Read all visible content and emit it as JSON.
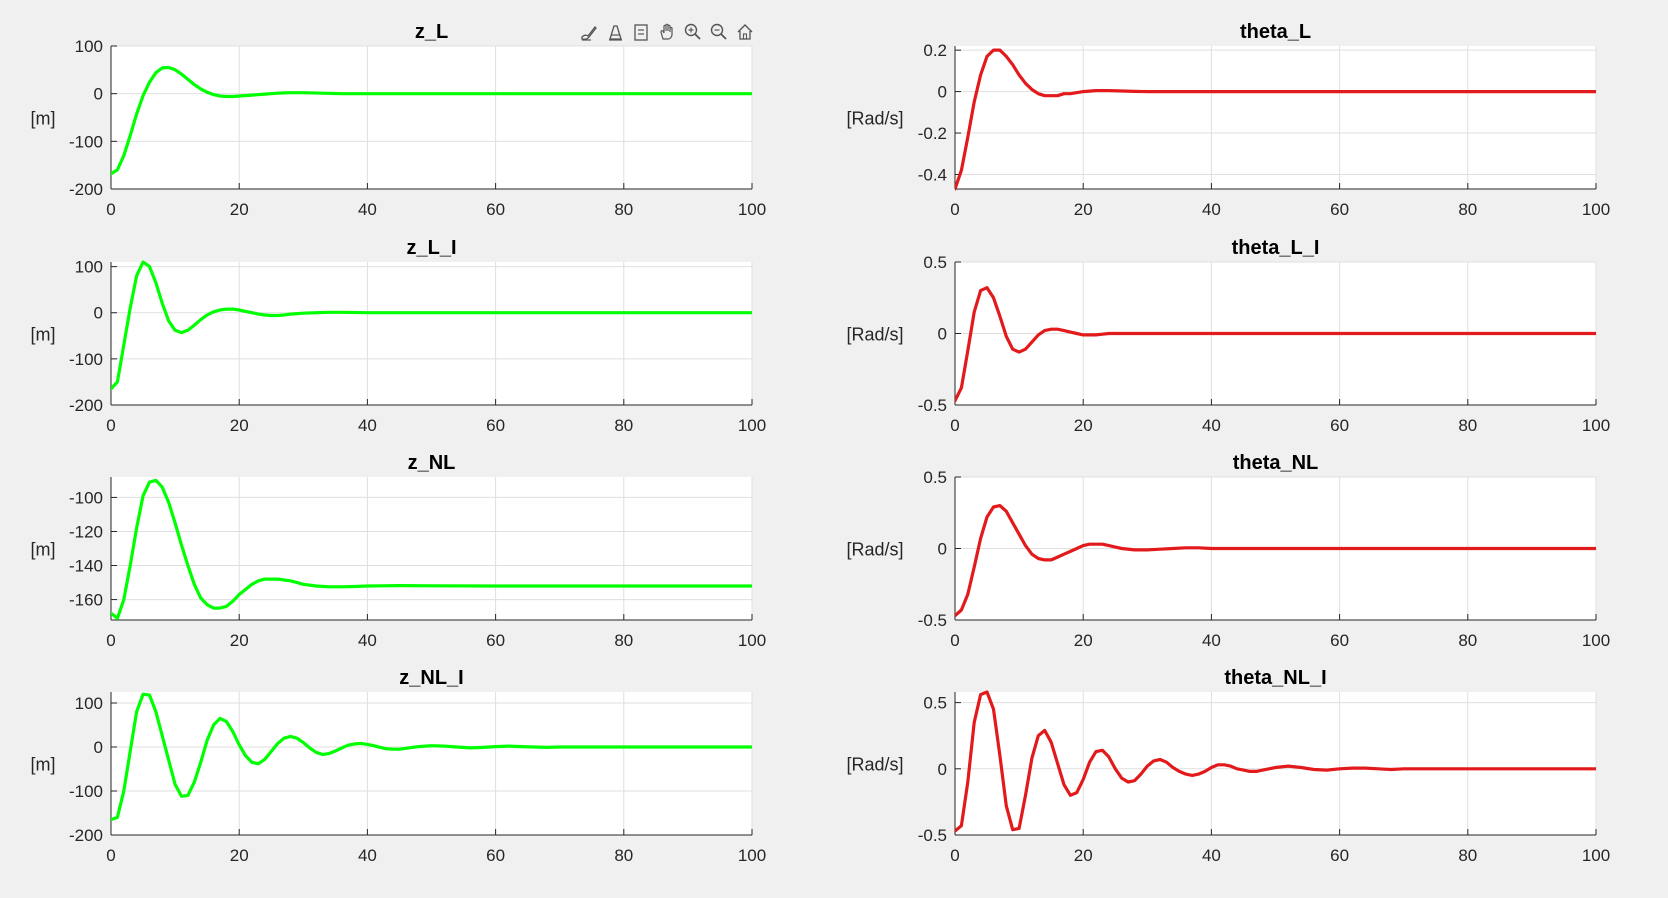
{
  "toolbar": {
    "buttons": [
      {
        "name": "brush-icon"
      },
      {
        "name": "data-tips-icon"
      },
      {
        "name": "restore-icon"
      },
      {
        "name": "pan-icon"
      },
      {
        "name": "zoom-in-icon"
      },
      {
        "name": "zoom-out-icon"
      },
      {
        "name": "home-icon"
      }
    ]
  },
  "chart_data": [
    {
      "type": "line",
      "title": "z_L",
      "ylabel": "[m]",
      "xlabel": "",
      "xlim": [
        0,
        100
      ],
      "ylim": [
        -200,
        100
      ],
      "xticks": [
        0,
        20,
        40,
        60,
        80,
        100
      ],
      "ytick_labels": [
        "100",
        "0",
        "-100",
        "-200"
      ],
      "yticks": [
        100,
        0,
        -100,
        -200
      ],
      "grid": true,
      "color": "#00ff00",
      "series": [
        {
          "x": [
            0,
            1,
            2,
            3,
            4,
            5,
            6,
            7,
            8,
            9,
            10,
            11,
            12,
            13,
            14,
            15,
            16,
            17,
            18,
            19,
            20,
            22,
            24,
            26,
            28,
            30,
            33,
            36,
            40,
            45,
            50,
            60,
            70,
            80,
            90,
            100
          ],
          "values": [
            -168,
            -160,
            -130,
            -88,
            -43,
            -4,
            24,
            44,
            54,
            55,
            50,
            41,
            30,
            19,
            10,
            3,
            -2,
            -5,
            -6,
            -6,
            -5,
            -3,
            -1,
            1,
            2,
            2,
            1,
            0,
            0,
            0,
            0,
            0,
            0,
            0,
            0,
            0
          ]
        }
      ]
    },
    {
      "type": "line",
      "title": "theta_L",
      "ylabel": "[Rad/s]",
      "xlabel": "",
      "xlim": [
        0,
        100
      ],
      "ylim": [
        -0.47,
        0.22
      ],
      "xticks": [
        0,
        20,
        40,
        60,
        80,
        100
      ],
      "ytick_labels": [
        "0.2",
        "0",
        "-0.2",
        "-0.4"
      ],
      "yticks": [
        0.2,
        0,
        -0.2,
        -0.4
      ],
      "grid": true,
      "color": "#e31a1c",
      "series": [
        {
          "x": [
            0,
            1,
            2,
            3,
            4,
            5,
            6,
            7,
            8,
            9,
            10,
            11,
            12,
            13,
            14,
            15,
            16,
            17,
            18,
            20,
            22,
            24,
            26,
            28,
            30,
            35,
            40,
            50,
            60,
            70,
            80,
            90,
            100
          ],
          "values": [
            -0.47,
            -0.38,
            -0.22,
            -0.05,
            0.08,
            0.17,
            0.2,
            0.2,
            0.17,
            0.13,
            0.08,
            0.04,
            0.01,
            -0.01,
            -0.02,
            -0.02,
            -0.02,
            -0.01,
            -0.01,
            0,
            0.005,
            0.005,
            0.003,
            0.001,
            0,
            0,
            0,
            0,
            0,
            0,
            0,
            0,
            0
          ]
        }
      ]
    },
    {
      "type": "line",
      "title": "z_L_I",
      "ylabel": "[m]",
      "xlabel": "",
      "xlim": [
        0,
        100
      ],
      "ylim": [
        -200,
        110
      ],
      "xticks": [
        0,
        20,
        40,
        60,
        80,
        100
      ],
      "ytick_labels": [
        "100",
        "0",
        "-100",
        "-200"
      ],
      "yticks": [
        100,
        0,
        -100,
        -200
      ],
      "grid": true,
      "color": "#00ff00",
      "series": [
        {
          "x": [
            0,
            1,
            2,
            3,
            4,
            5,
            6,
            7,
            8,
            9,
            10,
            11,
            12,
            13,
            14,
            15,
            16,
            17,
            18,
            19,
            20,
            21,
            22,
            23,
            24,
            25,
            26,
            27,
            28,
            30,
            32,
            34,
            36,
            40,
            45,
            50,
            60,
            70,
            80,
            90,
            100
          ],
          "values": [
            -165,
            -150,
            -70,
            10,
            80,
            110,
            100,
            65,
            20,
            -18,
            -38,
            -43,
            -38,
            -27,
            -15,
            -5,
            2,
            6,
            8,
            8,
            6,
            3,
            0,
            -3,
            -5,
            -6,
            -6,
            -5,
            -3,
            -1,
            0,
            1,
            1,
            0,
            0,
            0,
            0,
            0,
            0,
            0,
            0
          ]
        }
      ]
    },
    {
      "type": "line",
      "title": "theta_L_I",
      "ylabel": "[Rad/s]",
      "xlabel": "",
      "xlim": [
        0,
        100
      ],
      "ylim": [
        -0.5,
        0.5
      ],
      "xticks": [
        0,
        20,
        40,
        60,
        80,
        100
      ],
      "ytick_labels": [
        "0.5",
        "0",
        "-0.5"
      ],
      "yticks": [
        0.5,
        0,
        -0.5
      ],
      "grid": true,
      "color": "#e31a1c",
      "series": [
        {
          "x": [
            0,
            1,
            2,
            3,
            4,
            5,
            6,
            7,
            8,
            9,
            10,
            11,
            12,
            13,
            14,
            15,
            16,
            17,
            18,
            19,
            20,
            21,
            22,
            23,
            24,
            26,
            28,
            30,
            35,
            40,
            50,
            60,
            70,
            80,
            90,
            100
          ],
          "values": [
            -0.47,
            -0.38,
            -0.12,
            0.15,
            0.3,
            0.32,
            0.25,
            0.12,
            -0.02,
            -0.11,
            -0.13,
            -0.11,
            -0.06,
            -0.01,
            0.02,
            0.03,
            0.03,
            0.02,
            0.01,
            0,
            -0.01,
            -0.01,
            -0.01,
            -0.005,
            0,
            0,
            0,
            0,
            0,
            0,
            0,
            0,
            0,
            0,
            0,
            0
          ]
        }
      ]
    },
    {
      "type": "line",
      "title": "z_NL",
      "ylabel": "[m]",
      "xlabel": "",
      "xlim": [
        0,
        100
      ],
      "ylim": [
        -172,
        -88
      ],
      "xticks": [
        0,
        20,
        40,
        60,
        80,
        100
      ],
      "ytick_labels": [
        "-100",
        "-120",
        "-140",
        "-160"
      ],
      "yticks": [
        -100,
        -120,
        -140,
        -160
      ],
      "grid": true,
      "color": "#00ff00",
      "series": [
        {
          "x": [
            0,
            1,
            2,
            3,
            4,
            5,
            6,
            7,
            8,
            9,
            10,
            11,
            12,
            13,
            14,
            15,
            16,
            17,
            18,
            19,
            20,
            21,
            22,
            23,
            24,
            25,
            26,
            27,
            28,
            29,
            30,
            32,
            34,
            36,
            38,
            40,
            45,
            50,
            60,
            70,
            80,
            90,
            100
          ],
          "values": [
            -168,
            -171,
            -160,
            -140,
            -118,
            -99,
            -91,
            -90,
            -94,
            -103,
            -115,
            -128,
            -140,
            -151,
            -159,
            -163,
            -165,
            -165,
            -164,
            -161,
            -157,
            -154,
            -151,
            -149,
            -148,
            -148,
            -148,
            -148.5,
            -149,
            -150,
            -151,
            -152,
            -152.5,
            -152.5,
            -152.3,
            -152,
            -151.8,
            -151.9,
            -152,
            -152,
            -152,
            -152,
            -152
          ]
        }
      ]
    },
    {
      "type": "line",
      "title": "theta_NL",
      "ylabel": "[Rad/s]",
      "xlabel": "",
      "xlim": [
        0,
        100
      ],
      "ylim": [
        -0.5,
        0.5
      ],
      "xticks": [
        0,
        20,
        40,
        60,
        80,
        100
      ],
      "ytick_labels": [
        "0.5",
        "0",
        "-0.5"
      ],
      "yticks": [
        0.5,
        0,
        -0.5
      ],
      "grid": true,
      "color": "#e31a1c",
      "series": [
        {
          "x": [
            0,
            1,
            2,
            3,
            4,
            5,
            6,
            7,
            8,
            9,
            10,
            11,
            12,
            13,
            14,
            15,
            16,
            17,
            18,
            19,
            20,
            21,
            22,
            23,
            24,
            25,
            26,
            28,
            30,
            32,
            34,
            36,
            38,
            40,
            45,
            50,
            60,
            70,
            80,
            90,
            100
          ],
          "values": [
            -0.47,
            -0.43,
            -0.32,
            -0.13,
            0.07,
            0.22,
            0.29,
            0.3,
            0.26,
            0.18,
            0.1,
            0.02,
            -0.04,
            -0.07,
            -0.08,
            -0.08,
            -0.06,
            -0.04,
            -0.02,
            0,
            0.02,
            0.03,
            0.03,
            0.03,
            0.02,
            0.01,
            0,
            -0.01,
            -0.01,
            -0.005,
            0,
            0.005,
            0.005,
            0,
            0,
            0,
            0,
            0,
            0,
            0,
            0
          ]
        }
      ]
    },
    {
      "type": "line",
      "title": "z_NL_I",
      "ylabel": "[m]",
      "xlabel": "",
      "xlim": [
        0,
        100
      ],
      "ylim": [
        -200,
        125
      ],
      "xticks": [
        0,
        20,
        40,
        60,
        80,
        100
      ],
      "ytick_labels": [
        "100",
        "0",
        "-100",
        "-200"
      ],
      "yticks": [
        100,
        0,
        -100,
        -200
      ],
      "grid": true,
      "color": "#00ff00",
      "series": [
        {
          "x": [
            0,
            1,
            2,
            3,
            4,
            5,
            6,
            7,
            8,
            9,
            10,
            11,
            12,
            13,
            14,
            15,
            16,
            17,
            18,
            19,
            20,
            21,
            22,
            23,
            24,
            25,
            26,
            27,
            28,
            29,
            30,
            31,
            32,
            33,
            34,
            35,
            36,
            37,
            38,
            39,
            40,
            41,
            42,
            43,
            44,
            45,
            46,
            47,
            48,
            50,
            52,
            54,
            56,
            58,
            60,
            62,
            64,
            66,
            68,
            70,
            75,
            80,
            90,
            100
          ],
          "values": [
            -165,
            -160,
            -100,
            -10,
            80,
            120,
            118,
            80,
            25,
            -30,
            -85,
            -112,
            -110,
            -80,
            -35,
            15,
            50,
            65,
            58,
            35,
            5,
            -20,
            -35,
            -38,
            -28,
            -10,
            8,
            20,
            24,
            20,
            10,
            -2,
            -12,
            -17,
            -15,
            -9,
            -2,
            4,
            7,
            8,
            6,
            3,
            -1,
            -4,
            -5,
            -5,
            -3,
            -1,
            1,
            3,
            2,
            0,
            -2,
            -1,
            1,
            2,
            1,
            0,
            -1,
            0,
            0,
            0,
            0,
            0
          ]
        }
      ]
    },
    {
      "type": "line",
      "title": "theta_NL_I",
      "ylabel": "[Rad/s]",
      "xlabel": "",
      "xlim": [
        0,
        100
      ],
      "ylim": [
        -0.5,
        0.58
      ],
      "xticks": [
        0,
        20,
        40,
        60,
        80,
        100
      ],
      "ytick_labels": [
        "0.5",
        "0",
        "-0.5"
      ],
      "yticks": [
        0.5,
        0,
        -0.5
      ],
      "grid": true,
      "color": "#e31a1c",
      "series": [
        {
          "x": [
            0,
            1,
            2,
            3,
            4,
            5,
            6,
            7,
            8,
            9,
            10,
            11,
            12,
            13,
            14,
            15,
            16,
            17,
            18,
            19,
            20,
            21,
            22,
            23,
            24,
            25,
            26,
            27,
            28,
            29,
            30,
            31,
            32,
            33,
            34,
            35,
            36,
            37,
            38,
            39,
            40,
            41,
            42,
            43,
            44,
            45,
            46,
            47,
            48,
            49,
            50,
            52,
            54,
            56,
            58,
            60,
            62,
            64,
            66,
            68,
            70,
            75,
            80,
            90,
            100
          ],
          "values": [
            -0.47,
            -0.43,
            -0.1,
            0.35,
            0.56,
            0.58,
            0.45,
            0.1,
            -0.28,
            -0.46,
            -0.45,
            -0.2,
            0.08,
            0.25,
            0.29,
            0.2,
            0.04,
            -0.12,
            -0.2,
            -0.18,
            -0.08,
            0.05,
            0.13,
            0.14,
            0.09,
            0.0,
            -0.07,
            -0.1,
            -0.09,
            -0.04,
            0.02,
            0.06,
            0.07,
            0.05,
            0.01,
            -0.02,
            -0.04,
            -0.05,
            -0.04,
            -0.02,
            0.01,
            0.03,
            0.03,
            0.02,
            0.0,
            -0.01,
            -0.02,
            -0.02,
            -0.01,
            0.0,
            0.01,
            0.02,
            0.01,
            -0.005,
            -0.01,
            0.0,
            0.005,
            0.005,
            0.0,
            -0.005,
            0.0,
            0.0,
            0.0,
            0.0,
            0.0
          ]
        }
      ]
    }
  ]
}
